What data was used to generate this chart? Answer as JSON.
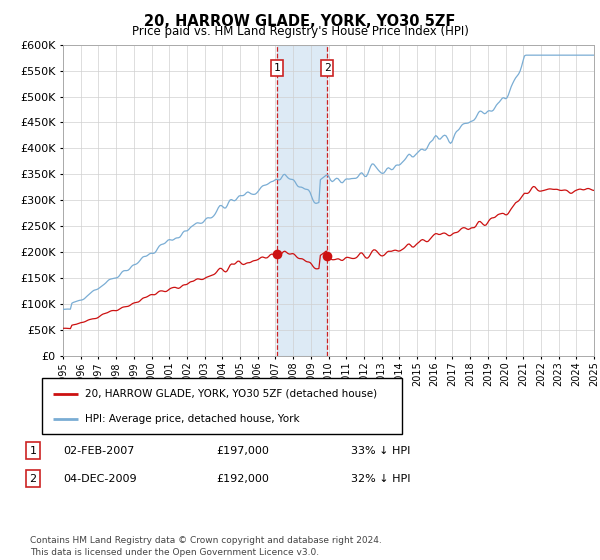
{
  "title": "20, HARROW GLADE, YORK, YO30 5ZF",
  "subtitle": "Price paid vs. HM Land Registry's House Price Index (HPI)",
  "ylim": [
    0,
    600000
  ],
  "yticks": [
    0,
    50000,
    100000,
    150000,
    200000,
    250000,
    300000,
    350000,
    400000,
    450000,
    500000,
    550000,
    600000
  ],
  "hpi_color": "#7aadd4",
  "price_color": "#cc1111",
  "sale1_date": 2007.08,
  "sale1_price": 197000,
  "sale2_date": 2009.92,
  "sale2_price": 192000,
  "legend_label1": "20, HARROW GLADE, YORK, YO30 5ZF (detached house)",
  "legend_label2": "HPI: Average price, detached house, York",
  "table_row1_num": "1",
  "table_row1_date": "02-FEB-2007",
  "table_row1_price": "£197,000",
  "table_row1_hpi": "33% ↓ HPI",
  "table_row2_num": "2",
  "table_row2_date": "04-DEC-2009",
  "table_row2_price": "£192,000",
  "table_row2_hpi": "32% ↓ HPI",
  "footnote": "Contains HM Land Registry data © Crown copyright and database right 2024.\nThis data is licensed under the Open Government Licence v3.0.",
  "xmin": 1995,
  "xmax": 2025
}
